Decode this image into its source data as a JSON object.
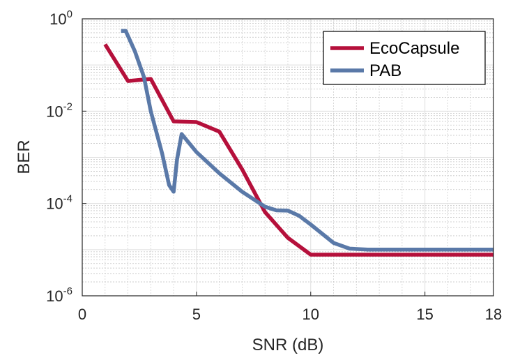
{
  "chart_data": {
    "type": "line",
    "xlabel": "SNR (dB)",
    "ylabel": "BER",
    "xlim": [
      0,
      18
    ],
    "ylim": [
      1e-06,
      1
    ],
    "yscale": "log",
    "grid": true,
    "minor_grid": true,
    "legend_position": "top-right",
    "x_ticks": [
      0,
      5,
      10,
      15,
      18
    ],
    "x_tick_labels": [
      "0",
      "5",
      "10",
      "15",
      "18"
    ],
    "y_ticks": [
      1e-06,
      0.0001,
      0.01,
      1
    ],
    "y_tick_labels": [
      {
        "base": "10",
        "exp": "-6"
      },
      {
        "base": "10",
        "exp": "-4"
      },
      {
        "base": "10",
        "exp": "-2"
      },
      {
        "base": "10",
        "exp": "0"
      }
    ],
    "series": [
      {
        "name": "EcoCapsule",
        "color": "#b5103b",
        "x": [
          1,
          2,
          3,
          4,
          5,
          6,
          7,
          8,
          9,
          10,
          11,
          12,
          13,
          14,
          15,
          16,
          17,
          18
        ],
        "y": [
          0.28,
          0.045,
          0.05,
          0.006,
          0.0058,
          0.0036,
          0.00055,
          6.5e-05,
          1.8e-05,
          7.8e-06,
          7.8e-06,
          7.8e-06,
          7.8e-06,
          7.8e-06,
          7.8e-06,
          7.8e-06,
          7.8e-06,
          7.8e-06
        ]
      },
      {
        "name": "PAB",
        "color": "#5a79a8",
        "x": [
          1.7,
          1.9,
          2.3,
          2.7,
          3.0,
          3.5,
          3.8,
          4.0,
          4.15,
          4.35,
          5,
          6,
          7,
          8,
          8.5,
          9,
          9.5,
          10,
          11,
          11.7,
          12.5,
          14,
          16,
          18
        ],
        "y": [
          0.55,
          0.55,
          0.2,
          0.055,
          0.01,
          0.0012,
          0.00025,
          0.00018,
          0.0009,
          0.0032,
          0.0013,
          0.00045,
          0.00018,
          8.5e-05,
          7.1e-05,
          7e-05,
          5.4e-05,
          3.5e-05,
          1.4e-05,
          1.05e-05,
          1e-05,
          1e-05,
          1e-05,
          1e-05
        ]
      }
    ]
  }
}
